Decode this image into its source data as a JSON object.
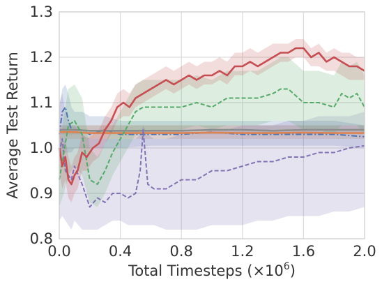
{
  "chart_data": {
    "type": "line",
    "xlabel": "Total Timesteps (×10",
    "xlabel_sup": "6",
    "xlabel_close": ")",
    "ylabel": "Average Test Return",
    "xlim": [
      0.0,
      2.0
    ],
    "ylim": [
      0.8,
      1.3
    ],
    "xticks": [
      0.0,
      0.4,
      0.8,
      1.2,
      1.6,
      2.0
    ],
    "xtick_labels": [
      "0.0",
      "0.4",
      "0.8",
      "1.2",
      "1.6",
      "2.0"
    ],
    "yticks": [
      0.8,
      0.9,
      1.0,
      1.1,
      1.2,
      1.3
    ],
    "ytick_labels": [
      "0.8",
      "0.9",
      "1.0",
      "1.1",
      "1.2",
      "1.3"
    ],
    "grid": true,
    "series": [
      {
        "color": "#4c72b0",
        "style": "dashdot",
        "band_color": "#4c72b0",
        "x": [
          0.0,
          0.02,
          0.04,
          0.06,
          0.08,
          0.1,
          0.15,
          0.2,
          0.3,
          0.4,
          0.6,
          0.8,
          1.0,
          1.2,
          1.4,
          1.6,
          1.8,
          2.0
        ],
        "y": [
          1.03,
          1.08,
          1.09,
          1.06,
          1.04,
          1.04,
          1.04,
          1.03,
          1.04,
          1.03,
          1.03,
          1.03,
          1.035,
          1.03,
          1.03,
          1.03,
          1.03,
          1.025
        ],
        "lower": [
          0.97,
          0.98,
          0.99,
          0.99,
          0.99,
          1.0,
          1.0,
          1.0,
          1.0,
          1.0,
          1.005,
          1.005,
          1.005,
          1.005,
          1.005,
          1.005,
          1.005,
          1.0
        ],
        "upper": [
          1.09,
          1.13,
          1.14,
          1.12,
          1.09,
          1.08,
          1.08,
          1.07,
          1.07,
          1.06,
          1.06,
          1.06,
          1.06,
          1.06,
          1.06,
          1.06,
          1.06,
          1.05
        ]
      },
      {
        "color": "#dd8452",
        "style": "solid",
        "band_color": "#dd8452",
        "x": [
          0.0,
          0.1,
          0.2,
          0.4,
          0.6,
          0.8,
          1.0,
          1.2,
          1.4,
          1.6,
          1.8,
          2.0
        ],
        "y": [
          1.035,
          1.035,
          1.033,
          1.033,
          1.033,
          1.033,
          1.034,
          1.033,
          1.033,
          1.034,
          1.033,
          1.033
        ],
        "lower": [
          1.02,
          1.02,
          1.02,
          1.02,
          1.02,
          1.02,
          1.02,
          1.02,
          1.02,
          1.02,
          1.02,
          1.02
        ],
        "upper": [
          1.05,
          1.05,
          1.05,
          1.05,
          1.05,
          1.05,
          1.05,
          1.05,
          1.05,
          1.05,
          1.05,
          1.05
        ]
      },
      {
        "color": "#8c8c8c",
        "style": "solid",
        "band_color": "#8c8c8c",
        "x": [
          0.0,
          0.1,
          0.2,
          0.4,
          0.6,
          0.8,
          1.0,
          1.2,
          1.4,
          1.6,
          1.8,
          2.0
        ],
        "y": [
          1.04,
          1.04,
          1.038,
          1.038,
          1.038,
          1.038,
          1.04,
          1.04,
          1.038,
          1.04,
          1.04,
          1.04
        ],
        "lower": [
          1.03,
          1.03,
          1.03,
          1.03,
          1.03,
          1.03,
          1.03,
          1.03,
          1.03,
          1.03,
          1.03,
          1.03
        ],
        "upper": [
          1.05,
          1.05,
          1.05,
          1.05,
          1.05,
          1.05,
          1.05,
          1.05,
          1.05,
          1.05,
          1.05,
          1.05
        ]
      },
      {
        "color": "#8172b3",
        "style": "dashed",
        "band_color": "#8172b3",
        "x": [
          0.0,
          0.02,
          0.04,
          0.06,
          0.08,
          0.1,
          0.15,
          0.2,
          0.25,
          0.3,
          0.35,
          0.4,
          0.45,
          0.5,
          0.53,
          0.55,
          0.58,
          0.62,
          0.7,
          0.8,
          0.9,
          1.0,
          1.1,
          1.2,
          1.3,
          1.4,
          1.5,
          1.6,
          1.7,
          1.8,
          1.9,
          2.0
        ],
        "y": [
          0.99,
          1.02,
          0.95,
          0.94,
          0.93,
          0.96,
          0.92,
          0.87,
          0.89,
          0.88,
          0.9,
          0.9,
          0.89,
          0.9,
          0.95,
          1.04,
          0.92,
          0.91,
          0.91,
          0.93,
          0.93,
          0.95,
          0.95,
          0.96,
          0.97,
          0.97,
          0.98,
          0.98,
          0.99,
          0.99,
          1.0,
          1.005
        ],
        "lower": [
          0.84,
          0.85,
          0.84,
          0.83,
          0.82,
          0.84,
          0.82,
          0.82,
          0.82,
          0.83,
          0.84,
          0.84,
          0.83,
          0.83,
          0.83,
          0.83,
          0.83,
          0.83,
          0.82,
          0.82,
          0.82,
          0.83,
          0.83,
          0.83,
          0.84,
          0.84,
          0.85,
          0.85,
          0.85,
          0.86,
          0.86,
          0.87
        ],
        "upper": [
          1.1,
          1.12,
          1.08,
          1.06,
          1.05,
          1.05,
          1.03,
          1.02,
          1.02,
          1.02,
          1.02,
          1.02,
          1.02,
          1.02,
          1.03,
          1.05,
          1.03,
          1.02,
          1.02,
          1.03,
          1.03,
          1.04,
          1.04,
          1.05,
          1.05,
          1.05,
          1.06,
          1.06,
          1.07,
          1.07,
          1.07,
          1.08
        ]
      },
      {
        "color": "#55a868",
        "style": "dashed",
        "band_color": "#55a868",
        "x": [
          0.0,
          0.03,
          0.06,
          0.1,
          0.15,
          0.2,
          0.25,
          0.3,
          0.35,
          0.4,
          0.45,
          0.5,
          0.55,
          0.6,
          0.7,
          0.8,
          0.9,
          1.0,
          1.1,
          1.2,
          1.3,
          1.4,
          1.45,
          1.5,
          1.6,
          1.7,
          1.8,
          1.85,
          1.9,
          1.95,
          2.0
        ],
        "y": [
          0.93,
          0.99,
          1.05,
          1.06,
          1.03,
          0.93,
          0.92,
          0.95,
          0.99,
          1.02,
          1.05,
          1.08,
          1.09,
          1.09,
          1.09,
          1.09,
          1.1,
          1.09,
          1.11,
          1.11,
          1.11,
          1.12,
          1.13,
          1.13,
          1.1,
          1.1,
          1.09,
          1.12,
          1.11,
          1.12,
          1.09
        ],
        "lower": [
          0.87,
          0.9,
          0.94,
          0.96,
          0.94,
          0.88,
          0.87,
          0.9,
          0.94,
          0.97,
          1.0,
          1.03,
          1.04,
          1.04,
          1.04,
          1.04,
          1.05,
          1.04,
          1.05,
          1.05,
          1.05,
          1.06,
          1.06,
          1.06,
          1.04,
          1.04,
          1.03,
          1.05,
          1.05,
          1.05,
          1.03
        ],
        "upper": [
          1.0,
          1.07,
          1.13,
          1.14,
          1.11,
          1.0,
          0.98,
          1.01,
          1.05,
          1.08,
          1.11,
          1.14,
          1.15,
          1.15,
          1.15,
          1.15,
          1.16,
          1.15,
          1.17,
          1.17,
          1.17,
          1.19,
          1.2,
          1.2,
          1.17,
          1.17,
          1.16,
          1.19,
          1.18,
          1.19,
          1.16
        ]
      },
      {
        "color": "#c44e52",
        "style": "solid",
        "band_color": "#c44e52",
        "x": [
          0.0,
          0.02,
          0.04,
          0.06,
          0.08,
          0.1,
          0.12,
          0.15,
          0.18,
          0.22,
          0.26,
          0.3,
          0.34,
          0.38,
          0.42,
          0.46,
          0.5,
          0.55,
          0.6,
          0.65,
          0.7,
          0.75,
          0.8,
          0.85,
          0.9,
          0.95,
          1.0,
          1.05,
          1.1,
          1.15,
          1.2,
          1.25,
          1.3,
          1.35,
          1.4,
          1.45,
          1.5,
          1.55,
          1.6,
          1.65,
          1.7,
          1.75,
          1.8,
          1.85,
          1.9,
          1.95,
          2.0
        ],
        "y": [
          1.0,
          0.96,
          0.98,
          0.93,
          0.92,
          0.94,
          0.95,
          0.99,
          0.98,
          1.0,
          1.01,
          1.04,
          1.06,
          1.09,
          1.1,
          1.09,
          1.11,
          1.12,
          1.13,
          1.14,
          1.15,
          1.14,
          1.15,
          1.16,
          1.15,
          1.16,
          1.16,
          1.17,
          1.16,
          1.18,
          1.18,
          1.19,
          1.18,
          1.19,
          1.2,
          1.21,
          1.21,
          1.22,
          1.22,
          1.2,
          1.21,
          1.19,
          1.2,
          1.19,
          1.18,
          1.18,
          1.17
        ],
        "lower": [
          0.95,
          0.91,
          0.93,
          0.89,
          0.88,
          0.9,
          0.91,
          0.95,
          0.95,
          0.97,
          0.98,
          1.01,
          1.03,
          1.06,
          1.07,
          1.07,
          1.09,
          1.1,
          1.11,
          1.12,
          1.13,
          1.12,
          1.13,
          1.14,
          1.13,
          1.14,
          1.14,
          1.15,
          1.14,
          1.16,
          1.16,
          1.17,
          1.16,
          1.17,
          1.18,
          1.19,
          1.19,
          1.2,
          1.2,
          1.18,
          1.18,
          1.17,
          1.17,
          1.16,
          1.15,
          1.15,
          1.15
        ],
        "upper": [
          1.04,
          1.01,
          1.02,
          0.98,
          0.96,
          0.98,
          0.99,
          1.03,
          1.02,
          1.03,
          1.04,
          1.07,
          1.09,
          1.12,
          1.13,
          1.12,
          1.14,
          1.15,
          1.16,
          1.17,
          1.18,
          1.17,
          1.18,
          1.19,
          1.18,
          1.19,
          1.19,
          1.2,
          1.19,
          1.21,
          1.21,
          1.22,
          1.21,
          1.22,
          1.23,
          1.23,
          1.23,
          1.24,
          1.24,
          1.22,
          1.23,
          1.21,
          1.22,
          1.21,
          1.21,
          1.2,
          1.2
        ]
      }
    ]
  }
}
